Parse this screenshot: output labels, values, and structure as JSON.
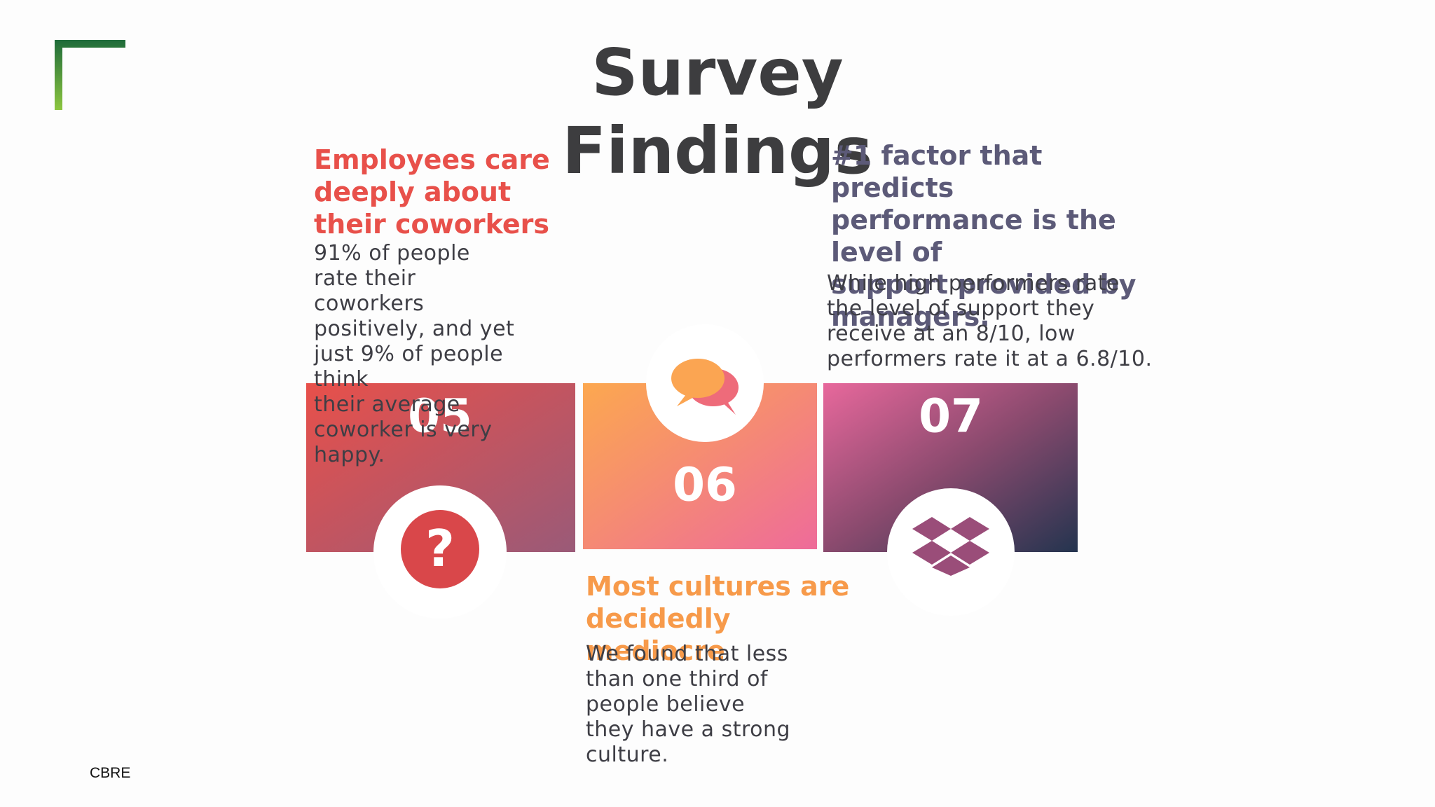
{
  "header": {
    "title_lines": [
      "Survey",
      "Findings"
    ]
  },
  "items": [
    {
      "number": "05",
      "heading": "Employees care deeply about their coworkers",
      "body": "91% of people rate their coworkers positively, and yet just 9% of people think\ntheir average coworker is very happy."
    },
    {
      "number": "06",
      "heading": "Most cultures are decidedly mediocre",
      "body": "We found that less than one third of people believe they have a strong culture."
    },
    {
      "number": "07",
      "heading": "#1 factor that predicts performance is the level of\nsupport provided by managers.",
      "body": "While high performers rate the level of support they receive at an 8/10, low\nperformers rate it at a 6.8/10."
    }
  ],
  "footer": {
    "brand": "CBRE"
  }
}
